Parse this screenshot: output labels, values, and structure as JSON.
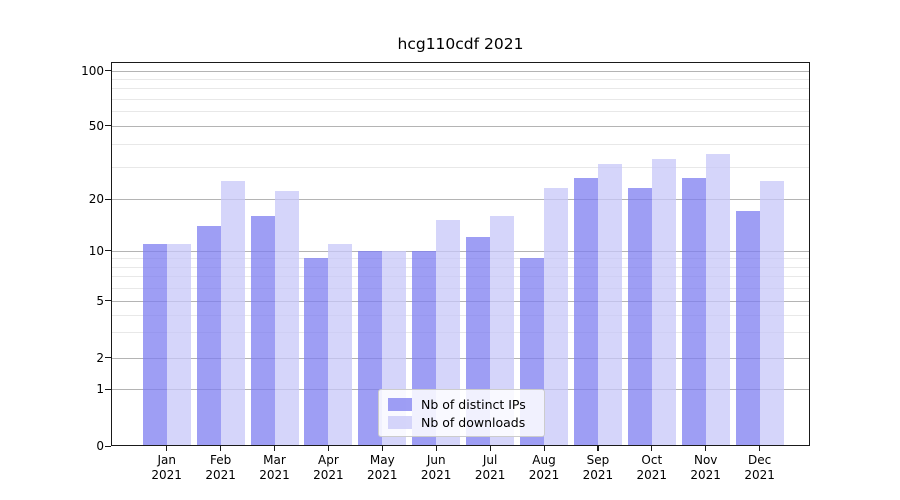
{
  "chart_data": {
    "type": "bar",
    "title": "hcg110cdf 2021",
    "categories": [
      {
        "month": "Jan",
        "year": "2021"
      },
      {
        "month": "Feb",
        "year": "2021"
      },
      {
        "month": "Mar",
        "year": "2021"
      },
      {
        "month": "Apr",
        "year": "2021"
      },
      {
        "month": "May",
        "year": "2021"
      },
      {
        "month": "Jun",
        "year": "2021"
      },
      {
        "month": "Jul",
        "year": "2021"
      },
      {
        "month": "Aug",
        "year": "2021"
      },
      {
        "month": "Sep",
        "year": "2021"
      },
      {
        "month": "Oct",
        "year": "2021"
      },
      {
        "month": "Nov",
        "year": "2021"
      },
      {
        "month": "Dec",
        "year": "2021"
      }
    ],
    "series": [
      {
        "name": "Nb of distinct IPs",
        "color": "#a4a4f2",
        "values": [
          11,
          14,
          16,
          9,
          10,
          10,
          12,
          9,
          26,
          23,
          26,
          17
        ]
      },
      {
        "name": "Nb of downloads",
        "color": "#d7d7fa",
        "values": [
          11,
          25,
          22,
          11,
          10,
          15,
          16,
          23,
          31,
          33,
          35,
          25
        ]
      }
    ],
    "xlabel": "",
    "ylabel": "",
    "y_axis": {
      "scale": "symlog-like",
      "major_ticks": [
        100,
        50,
        20,
        10,
        5,
        2,
        1,
        0
      ],
      "minor_ticks": [
        90,
        80,
        70,
        60,
        40,
        30,
        9,
        8,
        7,
        6,
        4,
        3
      ],
      "range": [
        0,
        112
      ]
    },
    "legend": {
      "position": "lower center",
      "entries": [
        "Nb of distinct IPs",
        "Nb of downloads"
      ]
    },
    "grid": "both",
    "colors": {
      "distinct_ips_fill": "#a4a4f2",
      "downloads_fill": "#d7d7fa",
      "grid_major": "#b4b4b4",
      "grid_minor": "#e8e8e8",
      "axis": "#1a1a1a"
    }
  }
}
